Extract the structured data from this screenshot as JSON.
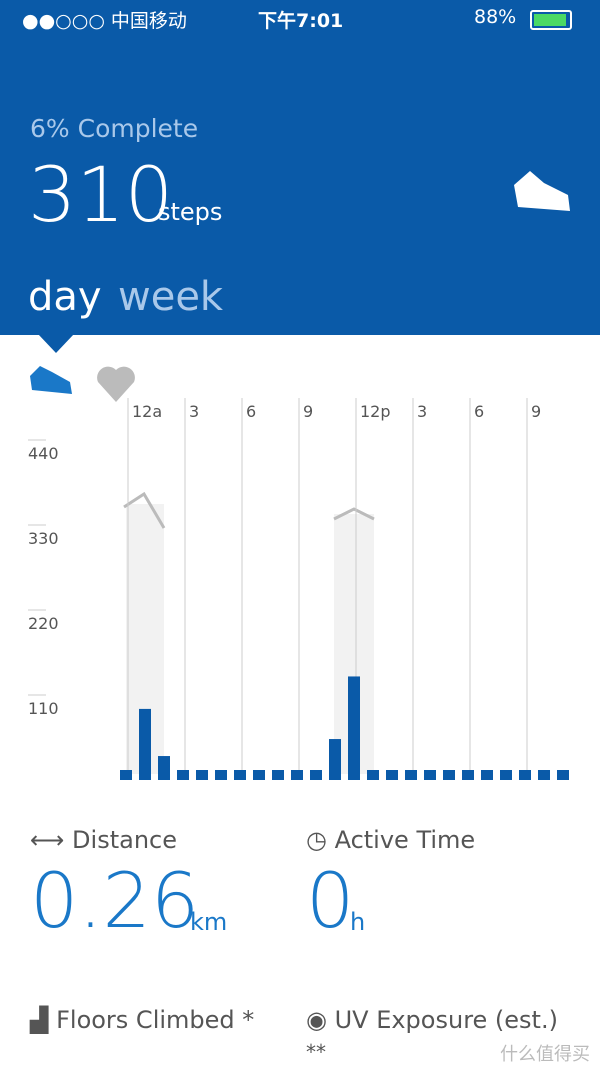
{
  "status_bar": {
    "carrier": "●●○○○ 中国移动",
    "time": "下午7:01",
    "battery": "88%"
  },
  "header": {
    "progress": "6% Complete",
    "steps": "310",
    "steps_unit": "steps"
  },
  "tabs": [
    "day",
    "week"
  ],
  "chart_data": {
    "type": "bar",
    "color": "#0a5aa8",
    "categories": [
      "12a",
      null,
      null,
      "3",
      null,
      null,
      "6",
      null,
      null,
      "9",
      null,
      null,
      "12p",
      null,
      null,
      "3",
      null,
      null,
      "6",
      null,
      null,
      "9",
      null,
      null
    ],
    "values": [
      0,
      92,
      31,
      0,
      0,
      0,
      0,
      0,
      0,
      0,
      0,
      53,
      134,
      0,
      0,
      0,
      0,
      0,
      0,
      0,
      0,
      0,
      0,
      0
    ],
    "ylim": [
      0,
      440
    ],
    "yticks": [
      110,
      220,
      330,
      440
    ]
  },
  "stats": [
    {
      "label": "Distance",
      "value": "0.26",
      "unit": "km"
    },
    {
      "label": "Active Time",
      "value": "0",
      "unit": "h"
    },
    {
      "label": "Floors Climbed *"
    },
    {
      "label": "UV Exposure (est.)",
      "value": "**"
    }
  ],
  "watermark": "什么值得买"
}
